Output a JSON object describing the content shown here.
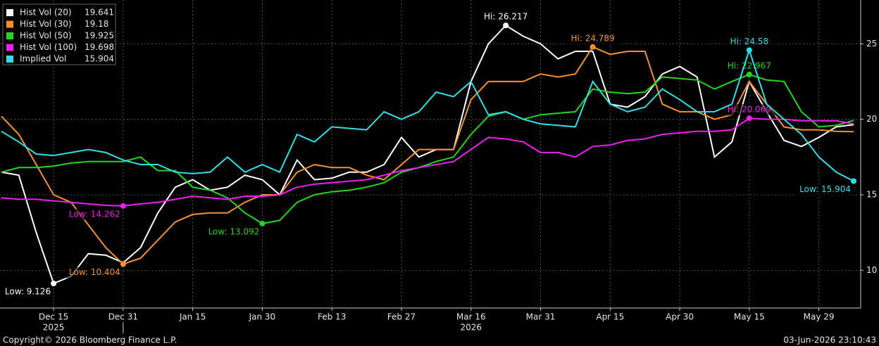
{
  "chart_data": {
    "type": "line",
    "categories": [
      null,
      null,
      null,
      "Dec 15",
      null,
      null,
      null,
      "Dec 31",
      null,
      null,
      null,
      "Jan 15",
      null,
      null,
      null,
      "Jan 30",
      null,
      null,
      null,
      "Feb 13",
      null,
      null,
      null,
      "Feb 27",
      null,
      null,
      null,
      "Mar 16",
      null,
      null,
      null,
      "Mar 31",
      null,
      null,
      null,
      "Apr 15",
      null,
      null,
      null,
      "Apr 30",
      null,
      null,
      null,
      "May 15",
      null,
      null,
      null,
      "May 29",
      null,
      null
    ],
    "year_labels": [
      "2025",
      "2026"
    ],
    "series": [
      {
        "name": "Hist Vol (20)",
        "color": "#ffffff",
        "hi_label": "Hi: 26.217",
        "low_label": "Low: 9.126",
        "values": [
          16.5,
          16.3,
          12.5,
          9.126,
          9.6,
          11.1,
          11.0,
          10.5,
          11.5,
          13.8,
          15.5,
          16.0,
          15.3,
          15.5,
          16.3,
          16.0,
          15.0,
          17.3,
          16.0,
          16.1,
          16.5,
          16.5,
          17.0,
          18.8,
          17.5,
          18.0,
          18.0,
          22.5,
          25.0,
          26.217,
          25.5,
          25.0,
          24.0,
          24.5,
          24.5,
          21.0,
          20.8,
          21.5,
          23.0,
          23.5,
          22.8,
          17.5,
          18.5,
          22.5,
          20.5,
          18.6,
          18.2,
          18.8,
          19.5,
          19.641
        ]
      },
      {
        "name": "Hist Vol (30)",
        "color": "#f7902a",
        "hi_label": "Hi: 24.789",
        "low_label": "Low: 10.404",
        "values": [
          20.2,
          19.0,
          17.0,
          15.0,
          14.5,
          13.0,
          11.5,
          10.404,
          10.8,
          12.0,
          13.2,
          13.7,
          13.8,
          13.8,
          14.5,
          15.0,
          15.0,
          16.5,
          17.0,
          16.8,
          16.8,
          16.3,
          16.0,
          17.0,
          18.0,
          18.0,
          18.0,
          21.3,
          22.5,
          22.5,
          22.5,
          23.0,
          22.8,
          23.0,
          24.789,
          24.3,
          24.5,
          24.5,
          21.0,
          20.5,
          20.5,
          20.0,
          20.3,
          22.5,
          21.0,
          19.5,
          19.3,
          19.3,
          19.2,
          19.18
        ]
      },
      {
        "name": "Hist Vol (50)",
        "color": "#22d81a",
        "hi_label": "Hi: 22.967",
        "low_label": "Low: 13.092",
        "values": [
          16.5,
          16.8,
          16.8,
          16.9,
          17.1,
          17.2,
          17.2,
          17.2,
          17.5,
          16.6,
          16.6,
          15.5,
          15.3,
          14.8,
          13.8,
          13.092,
          13.3,
          14.5,
          15.0,
          15.2,
          15.3,
          15.5,
          15.8,
          16.5,
          16.8,
          17.2,
          17.5,
          19.0,
          20.2,
          20.5,
          20.0,
          20.3,
          20.4,
          20.5,
          22.0,
          21.8,
          21.7,
          21.8,
          22.8,
          22.7,
          22.6,
          22.0,
          22.5,
          22.967,
          22.6,
          22.5,
          20.5,
          19.5,
          19.6,
          19.925
        ]
      },
      {
        "name": "Hist Vol (100)",
        "color": "#f01ef0",
        "hi_label": "Hi: 20.069",
        "low_label": "Low: 14.262",
        "values": [
          14.8,
          14.7,
          14.7,
          14.6,
          14.5,
          14.4,
          14.3,
          14.262,
          14.4,
          14.5,
          14.7,
          14.9,
          14.8,
          14.7,
          14.9,
          14.9,
          15.0,
          15.5,
          15.7,
          15.8,
          15.9,
          16.0,
          16.3,
          16.6,
          16.8,
          17.0,
          17.2,
          18.0,
          18.8,
          18.7,
          18.5,
          17.8,
          17.8,
          17.5,
          18.2,
          18.3,
          18.6,
          18.7,
          19.0,
          19.1,
          19.2,
          19.2,
          19.3,
          20.069,
          20.0,
          20.0,
          19.9,
          19.9,
          19.9,
          19.698
        ]
      },
      {
        "name": "Implied Vol",
        "color": "#2ee0e8",
        "hi_label": "Hi: 24.58",
        "low_label": "Low: 15.904",
        "values": [
          19.2,
          18.5,
          17.7,
          17.6,
          17.8,
          18.0,
          17.8,
          17.3,
          17.0,
          17.0,
          16.5,
          16.4,
          16.5,
          17.5,
          16.5,
          17.0,
          16.5,
          19.0,
          18.5,
          19.5,
          19.4,
          19.3,
          20.5,
          20.0,
          20.5,
          21.8,
          21.5,
          22.5,
          20.3,
          20.5,
          20.0,
          19.7,
          19.6,
          19.5,
          22.5,
          21.0,
          20.5,
          20.8,
          22.0,
          21.3,
          20.5,
          20.5,
          21.0,
          24.58,
          21.0,
          20.0,
          19.0,
          17.5,
          16.5,
          15.904
        ]
      }
    ],
    "ylim": [
      7.5,
      27.9
    ],
    "yticks": [
      10,
      15,
      20,
      25
    ],
    "grid": true,
    "legend": "top-left",
    "copyright": "Copyright© 2026 Bloomberg Finance L.P.",
    "timestamp": "03-Jun-2026 23:10:43"
  }
}
